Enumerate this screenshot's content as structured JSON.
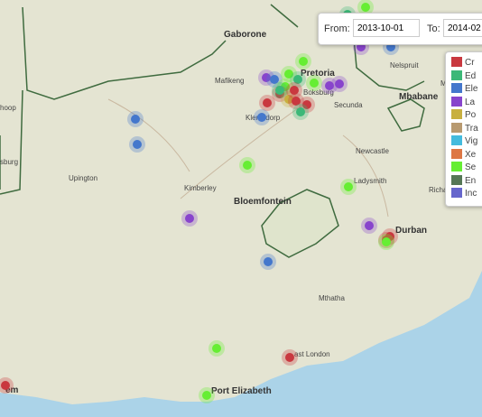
{
  "places": [
    "Gaborone",
    "Pretoria",
    "Mafikeng",
    "Nelspruit",
    "Mbabane",
    "Boksburg",
    "Secunda",
    "Klerksdorp",
    "Upington",
    "Kimberley",
    "Bloemfontein",
    "Newcastle",
    "Ladysmith",
    "Durban",
    "Mthatha",
    "ast London",
    "Port Elizabeth",
    "hoop",
    "sburg",
    "Richar",
    "Maputo",
    "em"
  ],
  "filter": {
    "from_label": "From:",
    "from": "2013-10-01",
    "to_label": "To:",
    "to": "2014-02"
  },
  "legend": [
    "Cr",
    "Ed",
    "Ele",
    "La",
    "Po",
    "Tra",
    "Vig",
    "Xe",
    "Se",
    "En",
    "Inc"
  ]
}
